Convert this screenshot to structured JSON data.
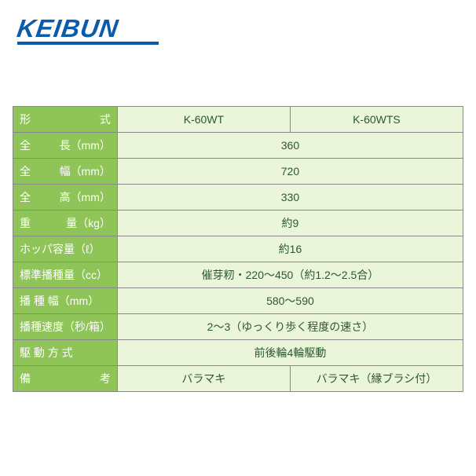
{
  "logo": {
    "text": "KEIBUN",
    "color": "#0a5ba8"
  },
  "colors": {
    "header_bg": "#8fc459",
    "header_text": "#ffffff",
    "data_bg": "#eaf5da",
    "data_text": "#2a5a2a",
    "border": "#888888"
  },
  "table": {
    "rows": [
      {
        "label_main": "形",
        "label_sub": "式",
        "unit": "",
        "col1": "K-60WT",
        "col2": "K-60WTS",
        "span": false
      },
      {
        "label_main": "全",
        "label_sub": "長",
        "unit": "（mm）",
        "merged": "360",
        "span": true
      },
      {
        "label_main": "全",
        "label_sub": "幅",
        "unit": "（mm）",
        "merged": "720",
        "span": true
      },
      {
        "label_main": "全",
        "label_sub": "高",
        "unit": "（mm）",
        "merged": "330",
        "span": true
      },
      {
        "label_main": "重",
        "label_sub": "量",
        "unit": "（kg）",
        "merged": "約9",
        "span": true
      },
      {
        "label_main": "ホッパ容量",
        "label_sub": "",
        "unit": "（ℓ）",
        "merged": "約16",
        "span": true
      },
      {
        "label_main": "標準播種量",
        "label_sub": "",
        "unit": "（cc）",
        "merged": "催芽籾・220〜450（約1.2〜2.5合）",
        "span": true
      },
      {
        "label_main": "播 種 幅",
        "label_sub": "",
        "unit": "（mm）",
        "merged": "580〜590",
        "span": true
      },
      {
        "label_main": "播種速度",
        "label_sub": "",
        "unit": "（秒/箱）",
        "merged": "2〜3（ゆっくり歩く程度の速さ）",
        "span": true
      },
      {
        "label_main": "駆 動 方 式",
        "label_sub": "",
        "unit": "",
        "merged": "前後輪4輪駆動",
        "span": true
      },
      {
        "label_main": "備",
        "label_sub": "考",
        "unit": "",
        "col1": "バラマキ",
        "col2": "バラマキ（縁ブラシ付）",
        "span": false
      }
    ]
  }
}
